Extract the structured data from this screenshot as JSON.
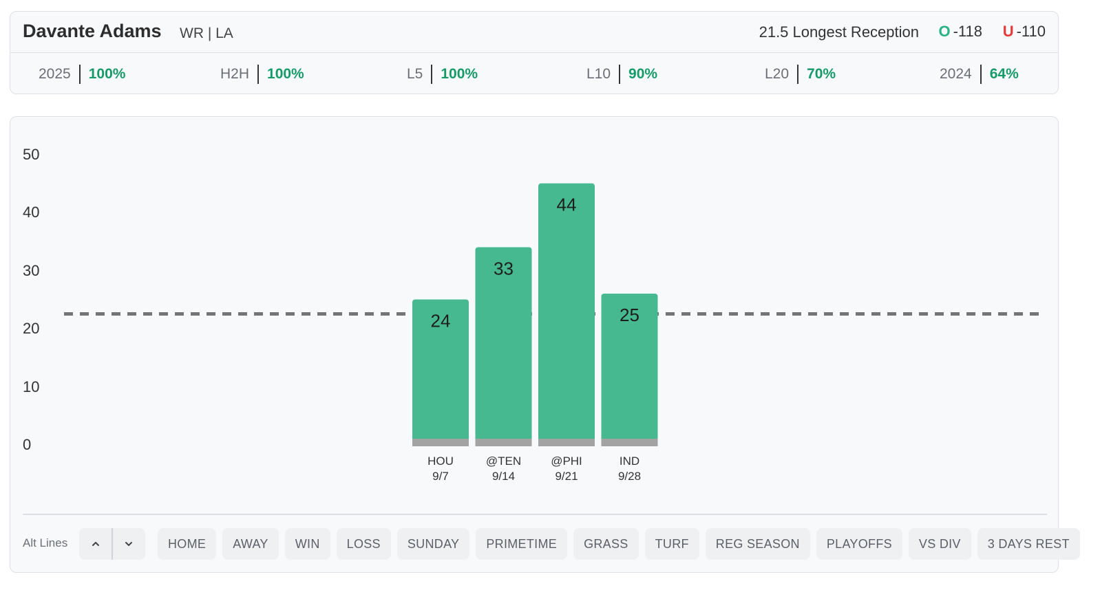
{
  "header": {
    "player_name": "Davante Adams",
    "player_meta": "WR | LA",
    "prop_line": "21.5 Longest Reception",
    "over": {
      "symbol": "O",
      "odds": "-118"
    },
    "under": {
      "symbol": "U",
      "odds": "-110"
    }
  },
  "stats": [
    {
      "label": "2025",
      "value": "100%"
    },
    {
      "label": "H2H",
      "value": "100%"
    },
    {
      "label": "L5",
      "value": "100%"
    },
    {
      "label": "L10",
      "value": "90%"
    },
    {
      "label": "L20",
      "value": "70%"
    },
    {
      "label": "2024",
      "value": "64%"
    }
  ],
  "chart_data": {
    "type": "bar",
    "categories": [
      "HOU",
      "@TEN",
      "@PHI",
      "IND"
    ],
    "dates": [
      "9/7",
      "9/14",
      "9/21",
      "9/28"
    ],
    "values": [
      24,
      33,
      44,
      25
    ],
    "y_ticks": [
      "50",
      "40",
      "30",
      "20",
      "10",
      "0"
    ],
    "ylim": [
      0,
      50
    ],
    "reference_line": 21.5,
    "bar_color": "#46b991",
    "base_color": "#a3a3a3",
    "line_color": "#757575"
  },
  "filters": {
    "alt_label": "Alt Lines",
    "chips": [
      "HOME",
      "AWAY",
      "WIN",
      "LOSS",
      "SUNDAY",
      "PRIMETIME",
      "GRASS",
      "TURF",
      "REG SEASON",
      "PLAYOFFS",
      "VS DIV",
      "3 DAYS REST"
    ]
  }
}
